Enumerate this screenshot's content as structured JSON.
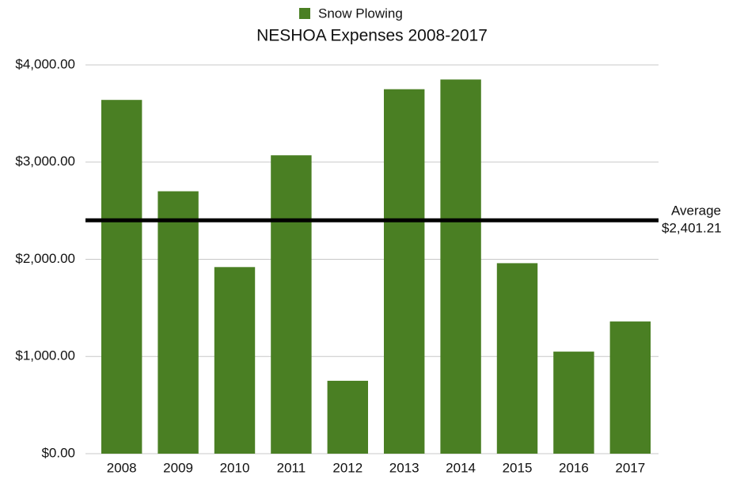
{
  "chart_data": {
    "type": "bar",
    "title": "NESHOA Expenses 2008-2017",
    "categories": [
      "2008",
      "2009",
      "2010",
      "2011",
      "2012",
      "2013",
      "2014",
      "2015",
      "2016",
      "2017"
    ],
    "series": [
      {
        "name": "Snow Plowing",
        "color": "#4a7f23",
        "values": [
          3640,
          2700,
          1920,
          3070,
          750,
          3750,
          3850,
          1960,
          1050,
          1360
        ]
      }
    ],
    "ylim": [
      0,
      4000
    ],
    "yticks": [
      {
        "value": 0,
        "label": "$0.00"
      },
      {
        "value": 1000,
        "label": "$1,000.00"
      },
      {
        "value": 2000,
        "label": "$2,000.00"
      },
      {
        "value": 3000,
        "label": "$3,000.00"
      },
      {
        "value": 4000,
        "label": "$4,000.00"
      }
    ],
    "grid": true,
    "legend": "top",
    "reference_line": {
      "label": "Average",
      "value": 2401.21,
      "value_label": "$2,401.21",
      "color": "#000000"
    }
  }
}
